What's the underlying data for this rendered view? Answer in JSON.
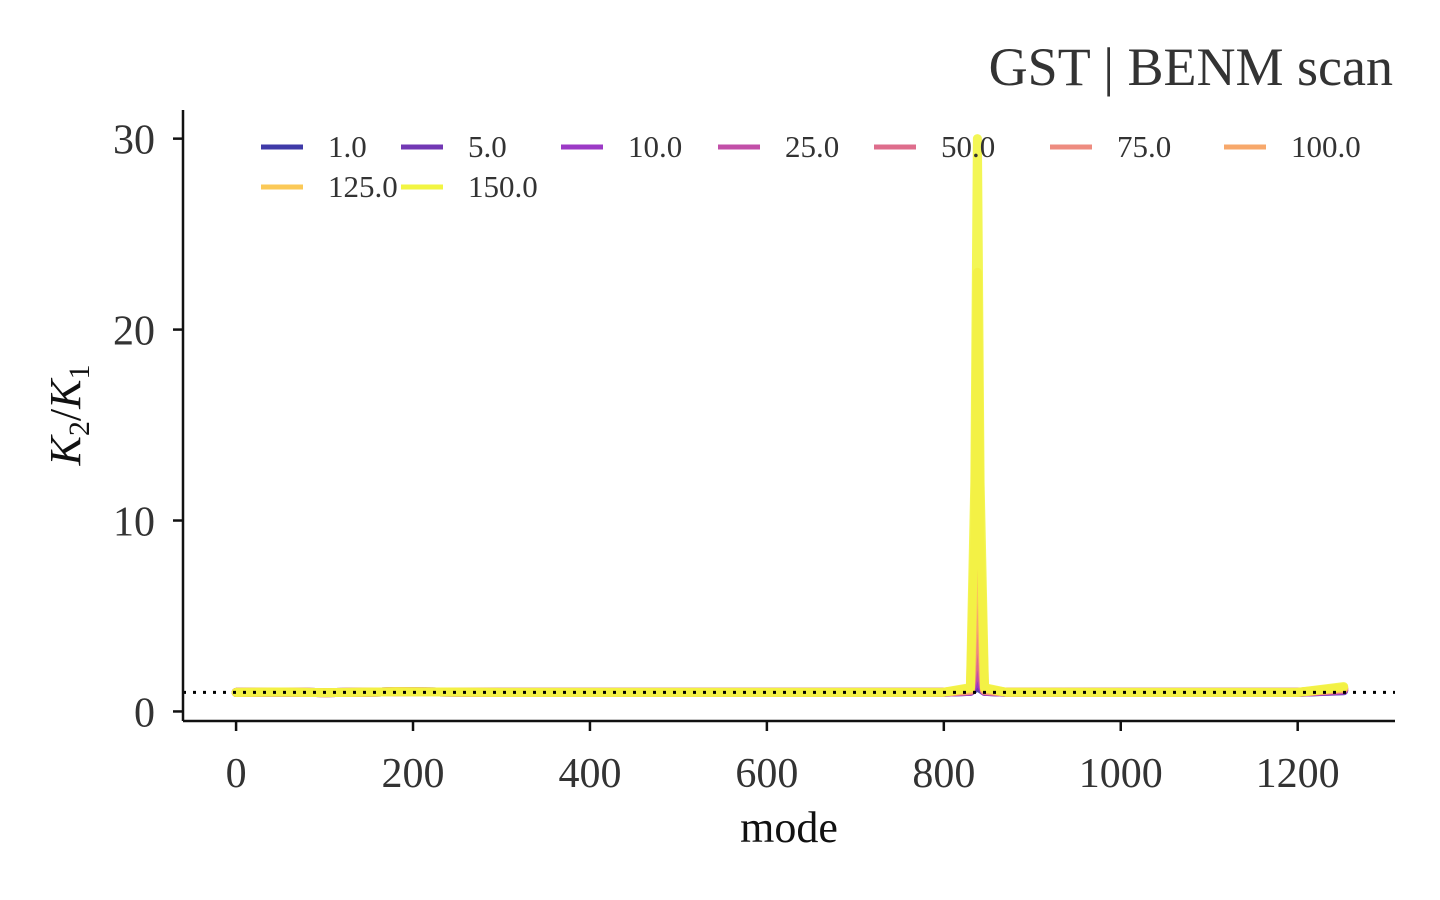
{
  "chart_data": {
    "type": "line",
    "title": "GST | BENM scan",
    "xlabel": "mode",
    "ylabel": {
      "base1": "K",
      "sub1": "2",
      "sep": "/",
      "base2": "K",
      "sub2": "1"
    },
    "xlim": [
      -60,
      1310
    ],
    "ylim": [
      -0.5,
      31.5
    ],
    "xticks": [
      0,
      200,
      400,
      600,
      800,
      1000,
      1200
    ],
    "yticks": [
      0,
      10,
      20,
      30
    ],
    "reference_line": {
      "y": 1.0,
      "style": "dotted",
      "color": "#000000"
    },
    "grid": false,
    "legend": {
      "placement": "top",
      "columns": 7
    },
    "series": [
      {
        "name": "1.0",
        "color": "#3f3aa8",
        "x": [
          0,
          50,
          100,
          180,
          300,
          500,
          700,
          800,
          830,
          835,
          838,
          841,
          846,
          870,
          1000,
          1200,
          1252
        ],
        "y": [
          1.0,
          1.02,
          0.99,
          1.03,
          1.0,
          1.0,
          1.0,
          1.01,
          1.05,
          1.2,
          1.3,
          1.2,
          1.05,
          1.01,
          1.0,
          1.0,
          1.08
        ]
      },
      {
        "name": "5.0",
        "color": "#7238b4",
        "x": [
          0,
          50,
          100,
          180,
          300,
          500,
          700,
          800,
          830,
          835,
          838,
          841,
          846,
          870,
          1000,
          1200,
          1252
        ],
        "y": [
          1.0,
          1.02,
          0.99,
          1.03,
          1.0,
          1.0,
          1.0,
          1.01,
          1.05,
          1.3,
          1.6,
          1.3,
          1.05,
          1.01,
          1.0,
          1.0,
          1.1
        ]
      },
      {
        "name": "10.0",
        "color": "#9c3ac6",
        "x": [
          0,
          50,
          100,
          180,
          300,
          500,
          700,
          800,
          830,
          835,
          838,
          841,
          846,
          870,
          1000,
          1200,
          1252
        ],
        "y": [
          1.0,
          1.02,
          0.99,
          1.03,
          1.0,
          1.0,
          1.0,
          1.01,
          1.06,
          1.5,
          2.2,
          1.5,
          1.06,
          1.01,
          1.0,
          1.0,
          1.12
        ]
      },
      {
        "name": "25.0",
        "color": "#c24fa8",
        "x": [
          0,
          50,
          100,
          180,
          300,
          500,
          700,
          800,
          830,
          835,
          838,
          841,
          846,
          870,
          1000,
          1200,
          1252
        ],
        "y": [
          1.0,
          1.02,
          0.99,
          1.03,
          1.0,
          1.0,
          1.0,
          1.01,
          1.08,
          2.0,
          3.5,
          2.0,
          1.08,
          1.01,
          1.0,
          1.0,
          1.15
        ]
      },
      {
        "name": "50.0",
        "color": "#de6d8c",
        "x": [
          0,
          50,
          100,
          180,
          300,
          500,
          700,
          800,
          830,
          835,
          838,
          841,
          846,
          870,
          1000,
          1200,
          1252
        ],
        "y": [
          1.0,
          1.02,
          0.99,
          1.03,
          1.0,
          1.0,
          1.0,
          1.01,
          1.1,
          3.0,
          6.0,
          3.0,
          1.1,
          1.01,
          1.0,
          1.0,
          1.18
        ]
      },
      {
        "name": "75.0",
        "color": "#ee8c80",
        "x": [
          0,
          50,
          100,
          180,
          300,
          500,
          700,
          800,
          830,
          835,
          838,
          841,
          846,
          870,
          1000,
          1200,
          1252
        ],
        "y": [
          1.0,
          1.02,
          0.99,
          1.03,
          1.0,
          1.0,
          1.0,
          1.01,
          1.12,
          4.5,
          10.0,
          4.5,
          1.12,
          1.01,
          1.0,
          1.0,
          1.2
        ]
      },
      {
        "name": "100.0",
        "color": "#f7a86b",
        "x": [
          0,
          50,
          100,
          180,
          300,
          500,
          700,
          800,
          830,
          835,
          838,
          841,
          846,
          870,
          1000,
          1200,
          1252
        ],
        "y": [
          1.0,
          1.02,
          0.99,
          1.03,
          1.0,
          1.0,
          1.0,
          1.01,
          1.15,
          6.5,
          15.0,
          6.5,
          1.15,
          1.01,
          1.0,
          1.0,
          1.22
        ]
      },
      {
        "name": "125.0",
        "color": "#fbc957",
        "x": [
          0,
          50,
          100,
          180,
          300,
          500,
          700,
          800,
          830,
          835,
          838,
          841,
          846,
          870,
          1000,
          1200,
          1252
        ],
        "y": [
          1.0,
          1.02,
          0.99,
          1.03,
          1.0,
          1.0,
          1.0,
          1.01,
          1.2,
          9.0,
          23.0,
          9.0,
          1.2,
          1.01,
          1.0,
          1.0,
          1.25
        ]
      },
      {
        "name": "150.0",
        "color": "#f2f542",
        "x": [
          0,
          50,
          100,
          180,
          300,
          500,
          700,
          800,
          830,
          835,
          838,
          841,
          846,
          870,
          1000,
          1200,
          1252
        ],
        "y": [
          1.0,
          1.02,
          0.99,
          1.03,
          1.0,
          1.0,
          1.0,
          1.01,
          1.25,
          12.0,
          30.0,
          12.0,
          1.25,
          1.01,
          1.0,
          1.0,
          1.3
        ]
      }
    ]
  }
}
